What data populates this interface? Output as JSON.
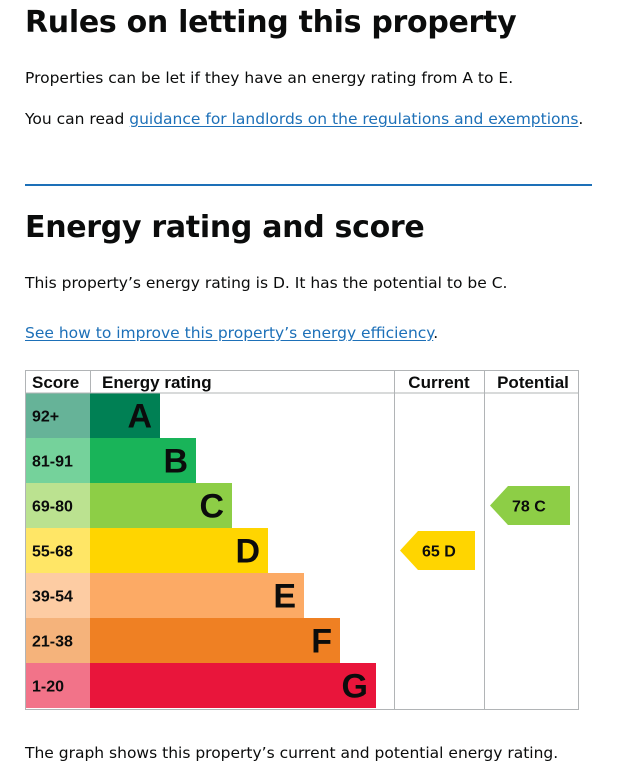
{
  "rules": {
    "heading": "Rules on letting this property",
    "intro": "Properties can be let if they have an energy rating from A to E.",
    "guidance_prefix": "You can read ",
    "guidance_link": "guidance for landlords on the regulations and exemptions",
    "guidance_suffix": "."
  },
  "energy": {
    "heading": "Energy rating and score",
    "summary": "This property’s energy rating is D. It has the potential to be C.",
    "improve_link": "See how to improve this property’s energy efficiency",
    "improve_suffix": ".",
    "footer": "The graph shows this property’s current and potential energy rating."
  },
  "colors": {
    "link": "#1d70b8",
    "rule": "#1d70b8"
  },
  "chart_data": {
    "type": "table",
    "headers": {
      "score": "Score",
      "rating": "Energy rating",
      "current": "Current",
      "potential": "Potential"
    },
    "bands": [
      {
        "score": "92+",
        "letter": "A",
        "color": "#008054",
        "score_color": "#66b398"
      },
      {
        "score": "81-91",
        "letter": "B",
        "color": "#19b459",
        "score_color": "#75d29b"
      },
      {
        "score": "69-80",
        "letter": "C",
        "color": "#8dce46",
        "score_color": "#bbe290"
      },
      {
        "score": "55-68",
        "letter": "D",
        "color": "#ffd500",
        "score_color": "#ffe666"
      },
      {
        "score": "39-54",
        "letter": "E",
        "color": "#fcaa65",
        "score_color": "#fdcca3"
      },
      {
        "score": "21-38",
        "letter": "F",
        "color": "#ef8023",
        "score_color": "#f5b37b"
      },
      {
        "score": "1-20",
        "letter": "G",
        "color": "#e9153b",
        "score_color": "#f27389"
      }
    ],
    "current": {
      "score": 65,
      "letter": "D",
      "label": "65  D",
      "color": "#ffd500"
    },
    "potential": {
      "score": 78,
      "letter": "C",
      "label": "78  C",
      "color": "#8dce46"
    }
  }
}
